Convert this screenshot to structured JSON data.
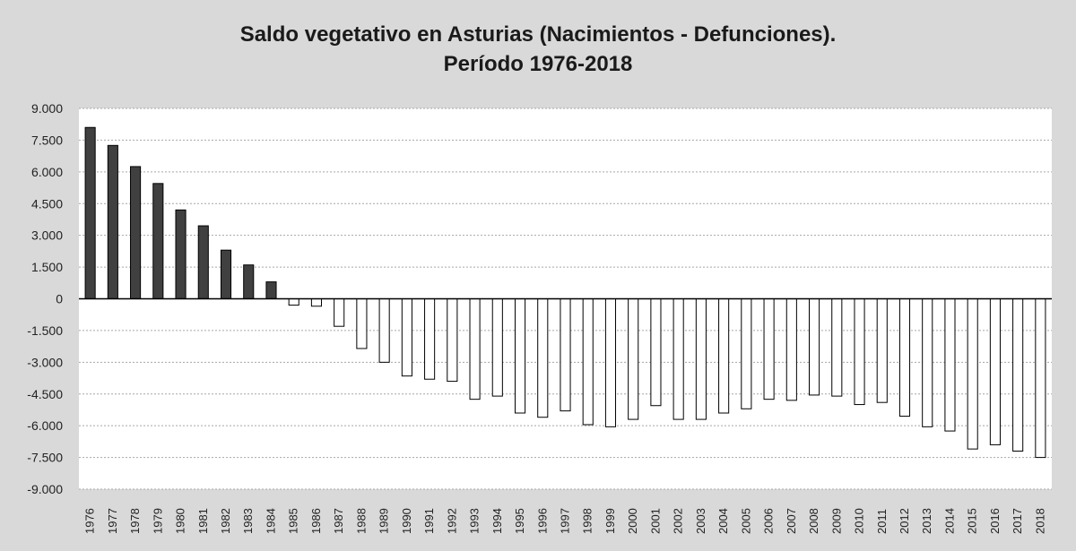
{
  "chart_data": {
    "type": "bar",
    "title": "Saldo vegetativo en Asturias (Nacimientos - Defunciones).",
    "subtitle": "Período 1976-2018",
    "xlabel": "",
    "ylabel": "",
    "ylim": [
      -9000,
      9000
    ],
    "yticks": [
      9000,
      7500,
      6000,
      4500,
      3000,
      1500,
      0,
      -1500,
      -3000,
      -4500,
      -6000,
      -7500,
      -9000
    ],
    "ytick_labels": [
      "9.000",
      "7.500",
      "6.000",
      "4.500",
      "3.000",
      "1.500",
      "0",
      "-1.500",
      "-3.000",
      "-4.500",
      "-6.000",
      "-7.500",
      "-9.000"
    ],
    "grid": "horizontal dotted",
    "colors": {
      "positive": "#404040",
      "negative": "#ffffff",
      "bar_border": "#000000",
      "plot_bg": "#ffffff",
      "page_bg": "#d9d9d9",
      "grid": "#a6a6a6"
    },
    "categories": [
      "1976",
      "1977",
      "1978",
      "1979",
      "1980",
      "1981",
      "1982",
      "1983",
      "1984",
      "1985",
      "1986",
      "1987",
      "1988",
      "1989",
      "1990",
      "1991",
      "1992",
      "1993",
      "1994",
      "1995",
      "1996",
      "1997",
      "1998",
      "1999",
      "2000",
      "2001",
      "2002",
      "2003",
      "2004",
      "2005",
      "2006",
      "2007",
      "2008",
      "2009",
      "2010",
      "2011",
      "2012",
      "2013",
      "2014",
      "2015",
      "2016",
      "2017",
      "2018"
    ],
    "values": [
      8100,
      7250,
      6250,
      5450,
      4200,
      3450,
      2300,
      1600,
      800,
      -300,
      -350,
      -1300,
      -2350,
      -3000,
      -3650,
      -3800,
      -3900,
      -4750,
      -4600,
      -5400,
      -5600,
      -5300,
      -5950,
      -6050,
      -5700,
      -5050,
      -5700,
      -5700,
      -5400,
      -5200,
      -4750,
      -4800,
      -4550,
      -4600,
      -5000,
      -4900,
      -5550,
      -6050,
      -6250,
      -7100,
      -6900,
      -7200,
      -7500
    ]
  }
}
